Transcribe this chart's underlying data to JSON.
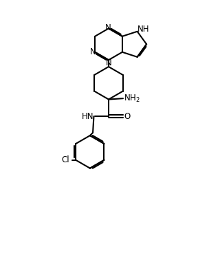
{
  "background_color": "#ffffff",
  "line_color": "#000000",
  "line_width": 1.5,
  "figsize": [
    2.88,
    3.97
  ],
  "dpi": 100,
  "xlim": [
    0,
    10
  ],
  "ylim": [
    0,
    14
  ]
}
